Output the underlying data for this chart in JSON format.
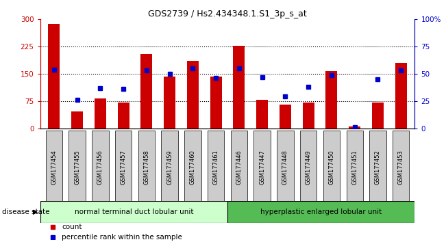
{
  "title": "GDS2739 / Hs2.434348.1.S1_3p_s_at",
  "samples": [
    "GSM177454",
    "GSM177455",
    "GSM177456",
    "GSM177457",
    "GSM177458",
    "GSM177459",
    "GSM177460",
    "GSM177461",
    "GSM177446",
    "GSM177447",
    "GSM177448",
    "GSM177449",
    "GSM177450",
    "GSM177451",
    "GSM177452",
    "GSM177453"
  ],
  "counts": [
    288,
    47,
    82,
    70,
    205,
    142,
    185,
    143,
    228,
    78,
    65,
    70,
    158,
    5,
    70,
    180
  ],
  "percentiles": [
    54,
    26,
    37,
    36,
    53,
    50,
    55,
    46,
    55,
    47,
    29,
    38,
    49,
    1,
    45,
    53
  ],
  "group1_label": "normal terminal duct lobular unit",
  "group2_label": "hyperplastic enlarged lobular unit",
  "group1_count": 8,
  "group2_count": 8,
  "ylim_left": [
    0,
    300
  ],
  "ylim_right": [
    0,
    100
  ],
  "yticks_left": [
    0,
    75,
    150,
    225,
    300
  ],
  "ytick_labels_left": [
    "0",
    "75",
    "150",
    "225",
    "300"
  ],
  "yticks_right": [
    0,
    25,
    50,
    75,
    100
  ],
  "ytick_labels_right": [
    "0",
    "25",
    "50",
    "75",
    "100%"
  ],
  "bar_color": "#cc0000",
  "dot_color": "#0000cc",
  "group1_bg": "#ccffcc",
  "group2_bg": "#55bb55",
  "disease_state_label": "disease state",
  "legend_count_label": "count",
  "legend_pct_label": "percentile rank within the sample",
  "tick_bg": "#cccccc"
}
